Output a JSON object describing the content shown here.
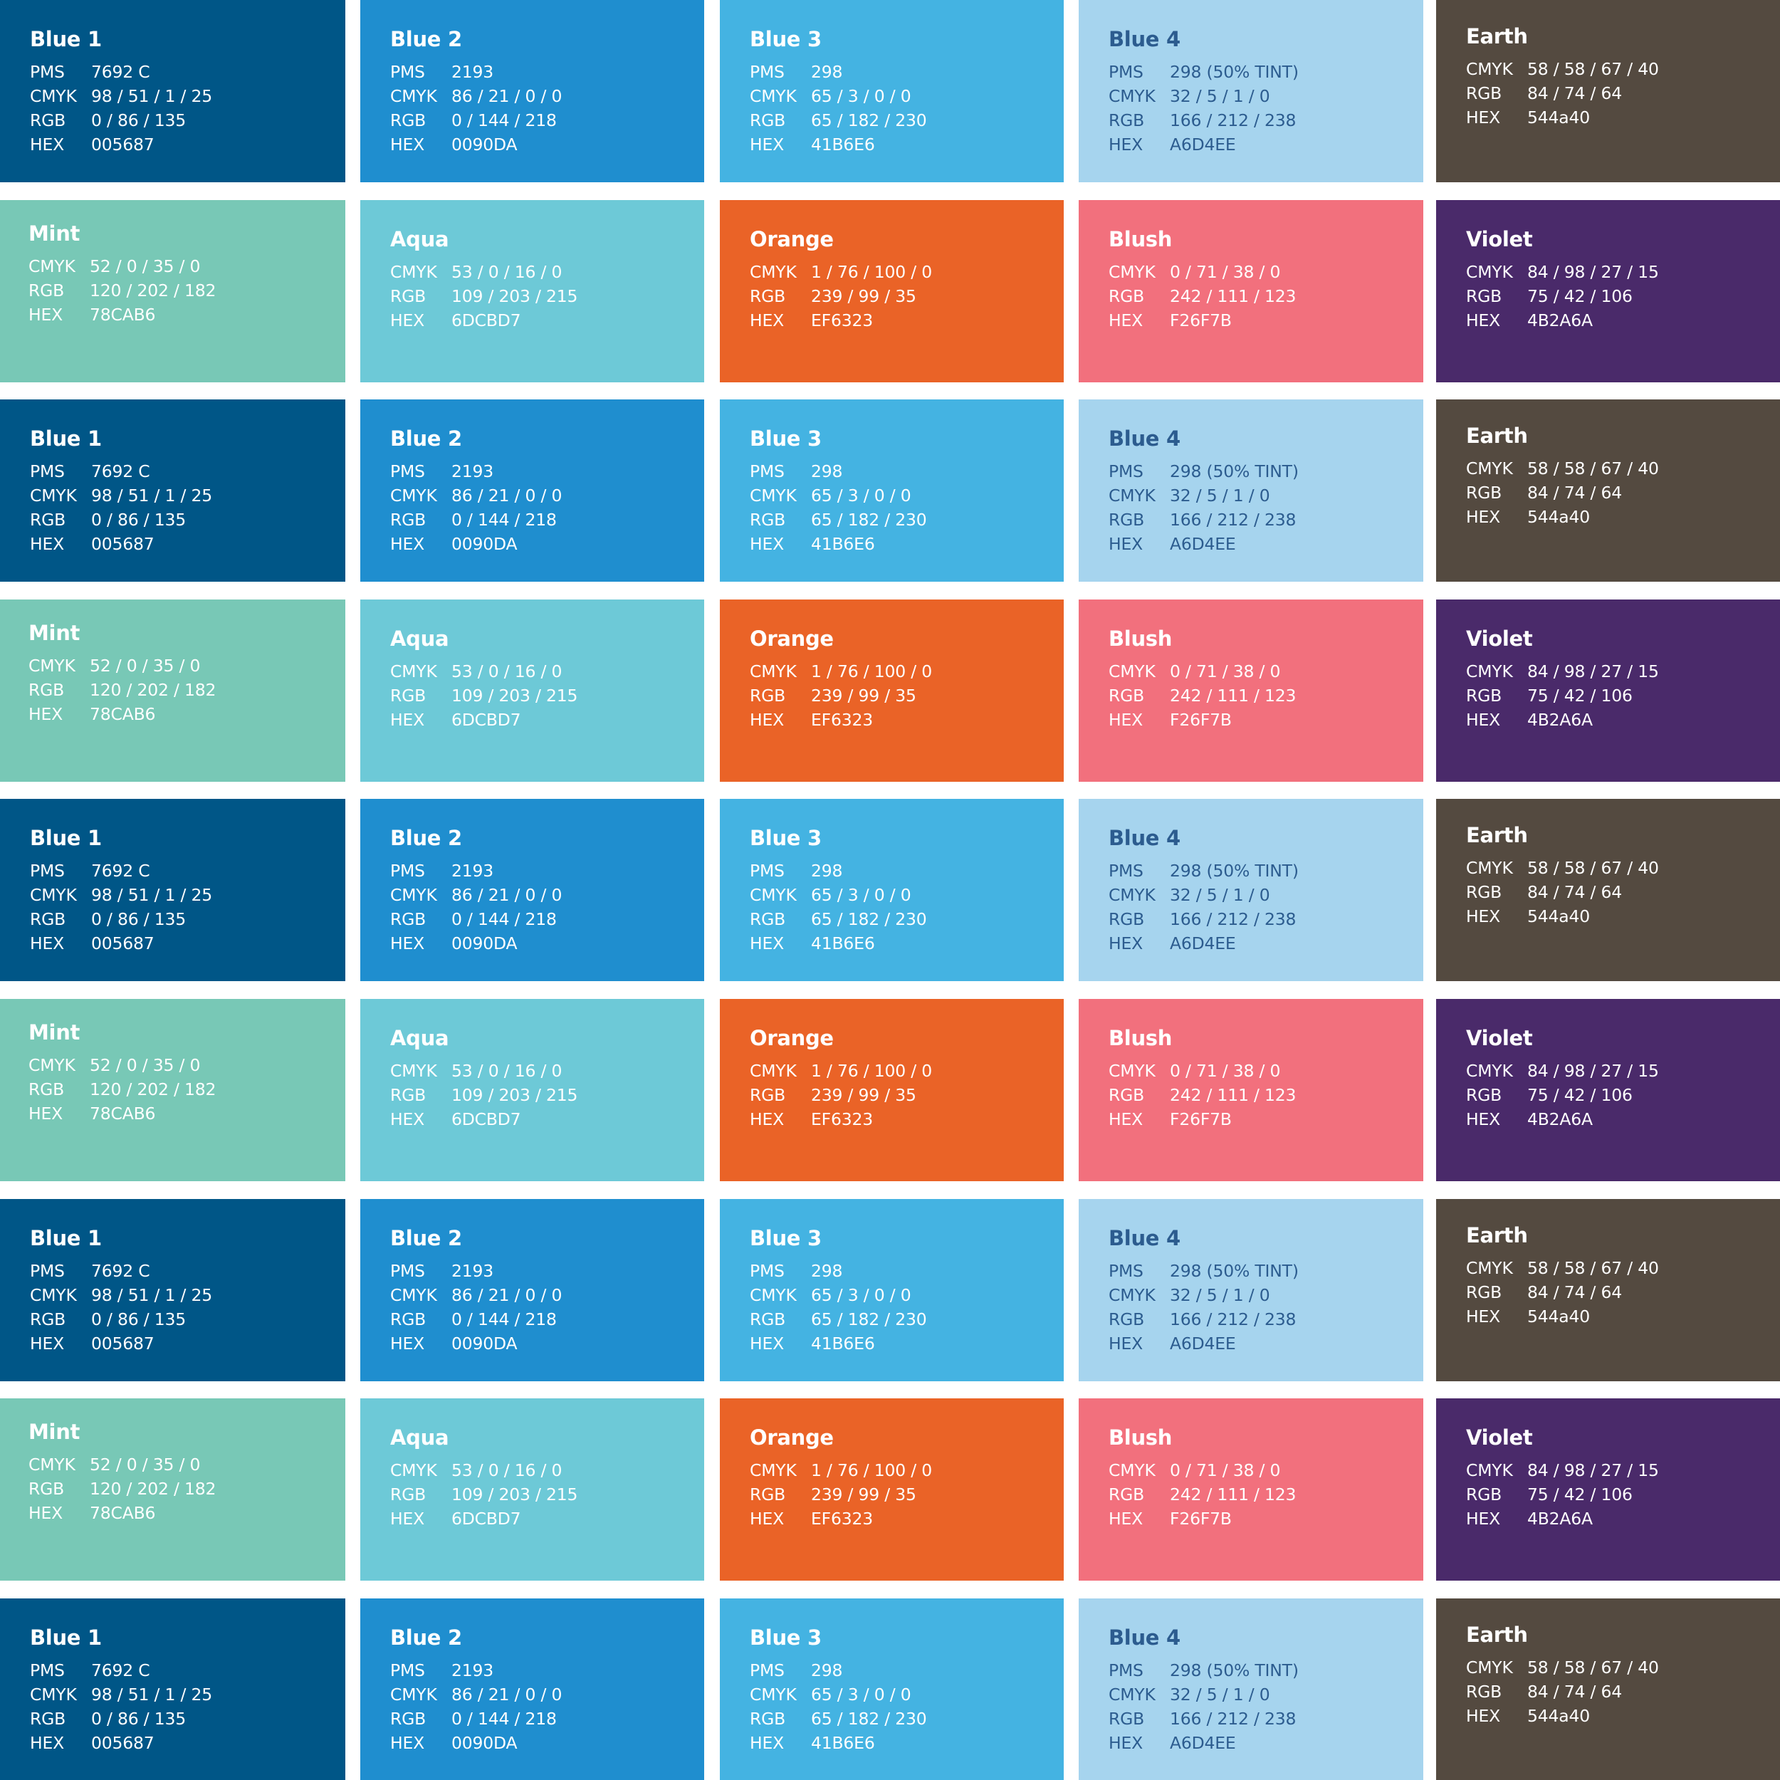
{
  "palette": {
    "blue1": {
      "name": "Blue 1",
      "color": "#005687",
      "text_color": "#ffffff",
      "fields": [
        {
          "label": "PMS",
          "value": "7692 C"
        },
        {
          "label": "CMYK",
          "value": "98 / 51 / 1 / 25"
        },
        {
          "label": "RGB",
          "value": "0 / 86 / 135"
        },
        {
          "label": "HEX",
          "value": "005687"
        }
      ]
    },
    "blue2": {
      "name": "Blue 2",
      "color": "#1F8ECF",
      "text_color": "#ffffff",
      "fields": [
        {
          "label": "PMS",
          "value": "2193"
        },
        {
          "label": "CMYK",
          "value": "86 / 21 / 0 / 0"
        },
        {
          "label": "RGB",
          "value": "0 / 144 / 218"
        },
        {
          "label": "HEX",
          "value": "0090DA"
        }
      ]
    },
    "blue3": {
      "name": "Blue 3",
      "color": "#44B3E2",
      "text_color": "#ffffff",
      "fields": [
        {
          "label": "PMS",
          "value": "298"
        },
        {
          "label": "CMYK",
          "value": "65 / 3 / 0 / 0"
        },
        {
          "label": "RGB",
          "value": "65 / 182 / 230"
        },
        {
          "label": "HEX",
          "value": "41B6E6"
        }
      ]
    },
    "blue4": {
      "name": "Blue 4",
      "color": "#A6D4EE",
      "text_color": "#2C5C8F",
      "fields": [
        {
          "label": "PMS",
          "value": "298 (50% TINT)"
        },
        {
          "label": "CMYK",
          "value": "32 / 5 / 1 / 0"
        },
        {
          "label": "RGB",
          "value": "166 / 212 / 238"
        },
        {
          "label": "HEX",
          "value": "A6D4EE"
        }
      ]
    },
    "earth": {
      "name": "Earth",
      "color": "#544A40",
      "text_color": "#ffffff",
      "fields": [
        {
          "label": "CMYK",
          "value": "58 / 58 / 67 / 40"
        },
        {
          "label": "RGB",
          "value": "84 / 74 / 64"
        },
        {
          "label": "HEX",
          "value": "544a40"
        }
      ]
    },
    "mint": {
      "name": "Mint",
      "color": "#78C8B6",
      "text_color": "#ffffff",
      "fields": [
        {
          "label": "CMYK",
          "value": "52 / 0 / 35 / 0"
        },
        {
          "label": "RGB",
          "value": "120 / 202 / 182"
        },
        {
          "label": "HEX",
          "value": "78CAB6"
        }
      ]
    },
    "aqua": {
      "name": "Aqua",
      "color": "#6DC9D7",
      "text_color": "#ffffff",
      "fields": [
        {
          "label": "CMYK",
          "value": "53 / 0 / 16 / 0"
        },
        {
          "label": "RGB",
          "value": "109 / 203 / 215"
        },
        {
          "label": "HEX",
          "value": "6DCBD7"
        }
      ]
    },
    "orange": {
      "name": "Orange",
      "color": "#EA6327",
      "text_color": "#ffffff",
      "fields": [
        {
          "label": "CMYK",
          "value": "1 / 76 / 100 / 0"
        },
        {
          "label": "RGB",
          "value": "239 / 99 / 35"
        },
        {
          "label": "HEX",
          "value": "EF6323"
        }
      ]
    },
    "blush": {
      "name": "Blush",
      "color": "#F2707D",
      "text_color": "#ffffff",
      "fields": [
        {
          "label": "CMYK",
          "value": "0 / 71 / 38 / 0"
        },
        {
          "label": "RGB",
          "value": "242 / 111 / 123"
        },
        {
          "label": "HEX",
          "value": "F26F7B"
        }
      ]
    },
    "violet": {
      "name": "Violet",
      "color": "#4A2A6A",
      "text_color": "#ffffff",
      "fields": [
        {
          "label": "CMYK",
          "value": "84 / 98 / 27 / 15"
        },
        {
          "label": "RGB",
          "value": "75 / 42 / 106"
        },
        {
          "label": "HEX",
          "value": "4B2A6A"
        }
      ]
    }
  },
  "grid": {
    "rows": [
      [
        "blue1",
        "blue2",
        "blue3",
        "blue4",
        "earth"
      ],
      [
        "mint",
        "aqua",
        "orange",
        "blush",
        "violet"
      ],
      [
        "blue1",
        "blue2",
        "blue3",
        "blue4",
        "earth"
      ],
      [
        "mint",
        "aqua",
        "orange",
        "blush",
        "violet"
      ],
      [
        "blue1",
        "blue2",
        "blue3",
        "blue4",
        "earth"
      ],
      [
        "mint",
        "aqua",
        "orange",
        "blush",
        "violet"
      ],
      [
        "blue1",
        "blue2",
        "blue3",
        "blue4",
        "earth"
      ],
      [
        "mint",
        "aqua",
        "orange",
        "blush",
        "violet"
      ],
      [
        "blue1",
        "blue2",
        "blue3",
        "blue4",
        "earth"
      ]
    ]
  }
}
